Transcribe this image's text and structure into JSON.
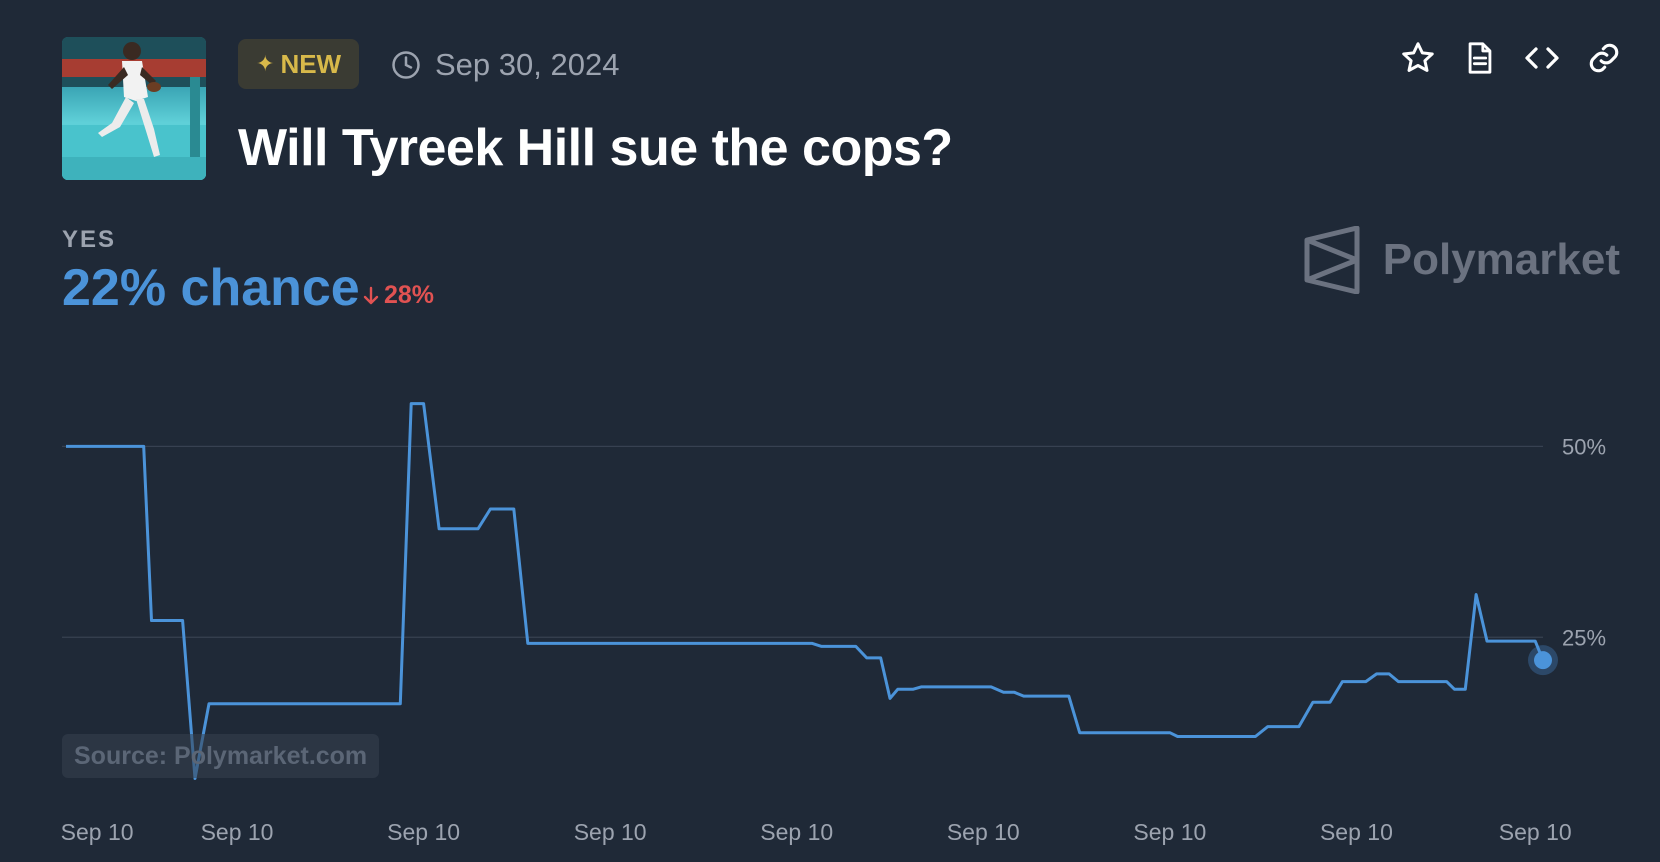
{
  "header": {
    "thumbnail_alt": "Tyreek Hill running with football",
    "badge_label": "NEW",
    "badge_icon": "sparkle-icon",
    "date": "Sep 30, 2024",
    "title": "Will Tyreek Hill sue the cops?"
  },
  "actions": [
    {
      "icon": "star-icon"
    },
    {
      "icon": "document-icon"
    },
    {
      "icon": "code-icon"
    },
    {
      "icon": "link-icon"
    }
  ],
  "outcome": {
    "label": "YES",
    "chance_text": "22% chance",
    "change_text": "28%",
    "change_direction": "down"
  },
  "watermark": {
    "brand": "Polymarket"
  },
  "source": {
    "text": "Source: Polymarket.com"
  },
  "colors": {
    "background": "#1f2937",
    "line": "#4b93d9",
    "grid": "#374151",
    "muted": "#9ca3af",
    "negative": "#e05252",
    "badge_text": "#d8b94a"
  },
  "chart_data": {
    "type": "line",
    "series": [
      {
        "values": [
          [
            0,
            50
          ],
          [
            5,
            50
          ],
          [
            5.5,
            27.2
          ],
          [
            7.5,
            27.2
          ],
          [
            8.3,
            6.5
          ],
          [
            9.2,
            16.3
          ],
          [
            21.5,
            16.3
          ],
          [
            22.2,
            55.6
          ],
          [
            23.0,
            55.6
          ],
          [
            24.0,
            39.2
          ],
          [
            26.5,
            39.2
          ],
          [
            27.3,
            41.8
          ],
          [
            28.8,
            41.8
          ],
          [
            29.7,
            24.2
          ],
          [
            48.0,
            24.2
          ],
          [
            48.6,
            23.8
          ],
          [
            50.8,
            23.8
          ],
          [
            51.5,
            22.3
          ],
          [
            52.4,
            22.3
          ],
          [
            53.0,
            17.0
          ],
          [
            53.5,
            18.2
          ],
          [
            54.5,
            18.2
          ],
          [
            55.0,
            18.5
          ],
          [
            59.5,
            18.5
          ],
          [
            60.3,
            17.8
          ],
          [
            61.0,
            17.8
          ],
          [
            61.6,
            17.3
          ],
          [
            64.5,
            17.3
          ],
          [
            65.2,
            12.5
          ],
          [
            71.0,
            12.5
          ],
          [
            71.5,
            12.0
          ],
          [
            76.5,
            12.0
          ],
          [
            77.3,
            13.3
          ],
          [
            79.3,
            13.3
          ],
          [
            80.2,
            16.5
          ],
          [
            81.3,
            16.5
          ],
          [
            82.1,
            19.2
          ],
          [
            83.6,
            19.2
          ],
          [
            84.3,
            20.2
          ],
          [
            85.1,
            20.2
          ],
          [
            85.7,
            19.2
          ],
          [
            88.8,
            19.2
          ],
          [
            89.3,
            18.2
          ],
          [
            90.0,
            18.2
          ],
          [
            90.7,
            30.6
          ],
          [
            91.4,
            24.5
          ],
          [
            94.5,
            24.5
          ],
          [
            95.0,
            22.0
          ]
        ]
      }
    ],
    "x_tick_labels": [
      "Sep 10",
      "Sep 10",
      "Sep 10",
      "Sep 10",
      "Sep 10",
      "Sep 10",
      "Sep 10",
      "Sep 10",
      "Sep 10"
    ],
    "x_tick_positions": [
      2,
      11,
      23,
      35,
      47,
      59,
      71,
      83,
      94.5
    ],
    "xlim": [
      0,
      95
    ],
    "y_ticks": [
      25,
      50
    ],
    "y_tick_labels": [
      "25%",
      "50%"
    ],
    "ylim": [
      5,
      60
    ],
    "grid": true,
    "last_value": 22
  }
}
